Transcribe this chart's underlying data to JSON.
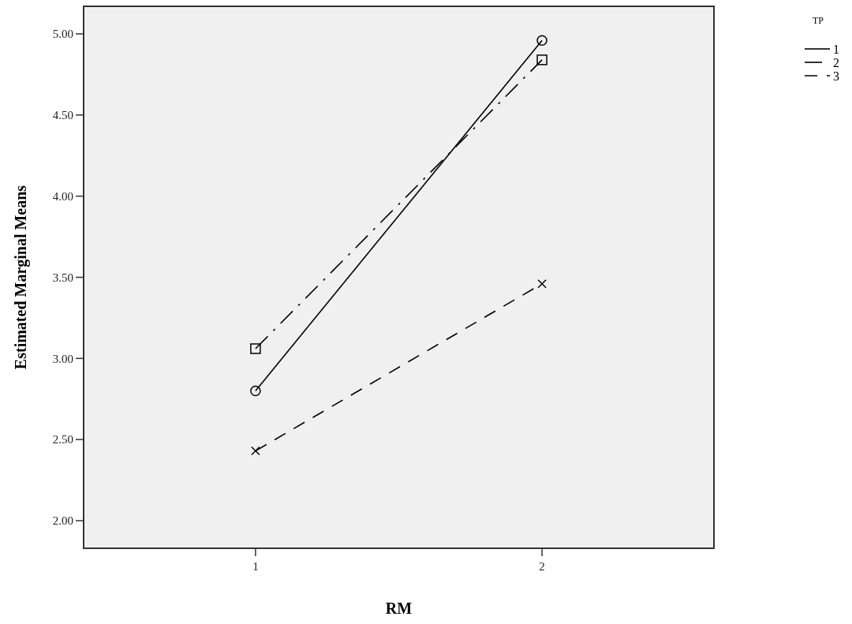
{
  "chart_data": {
    "type": "line",
    "xlabel": "RM",
    "ylabel": "Estimated Marginal Means",
    "legend_title": "TP",
    "categories": [
      "1",
      "2"
    ],
    "series": [
      {
        "name": "1",
        "color": "#000000",
        "values": [
          2.8,
          4.96
        ],
        "marker": "circle",
        "line_style": "solid"
      },
      {
        "name": "2",
        "color": "#000000",
        "values": [
          3.06,
          4.84
        ],
        "marker": "square",
        "line_style": "dashdot"
      },
      {
        "name": "3",
        "color": "#000000",
        "values": [
          2.43,
          3.46
        ],
        "marker": "cross",
        "line_style": "dashed"
      }
    ],
    "ylim": [
      1.83,
      5.17
    ],
    "yticks": [
      {
        "value": 2,
        "label": "2.00"
      },
      {
        "value": 2.5,
        "label": "2.50"
      },
      {
        "value": 3,
        "label": "3.00"
      },
      {
        "value": 3.5,
        "label": "3.50"
      },
      {
        "value": 4,
        "label": "4.00"
      },
      {
        "value": 4.5,
        "label": "4.50"
      },
      {
        "value": 5,
        "label": "5.00"
      }
    ],
    "grid": false,
    "legend": "top right"
  }
}
